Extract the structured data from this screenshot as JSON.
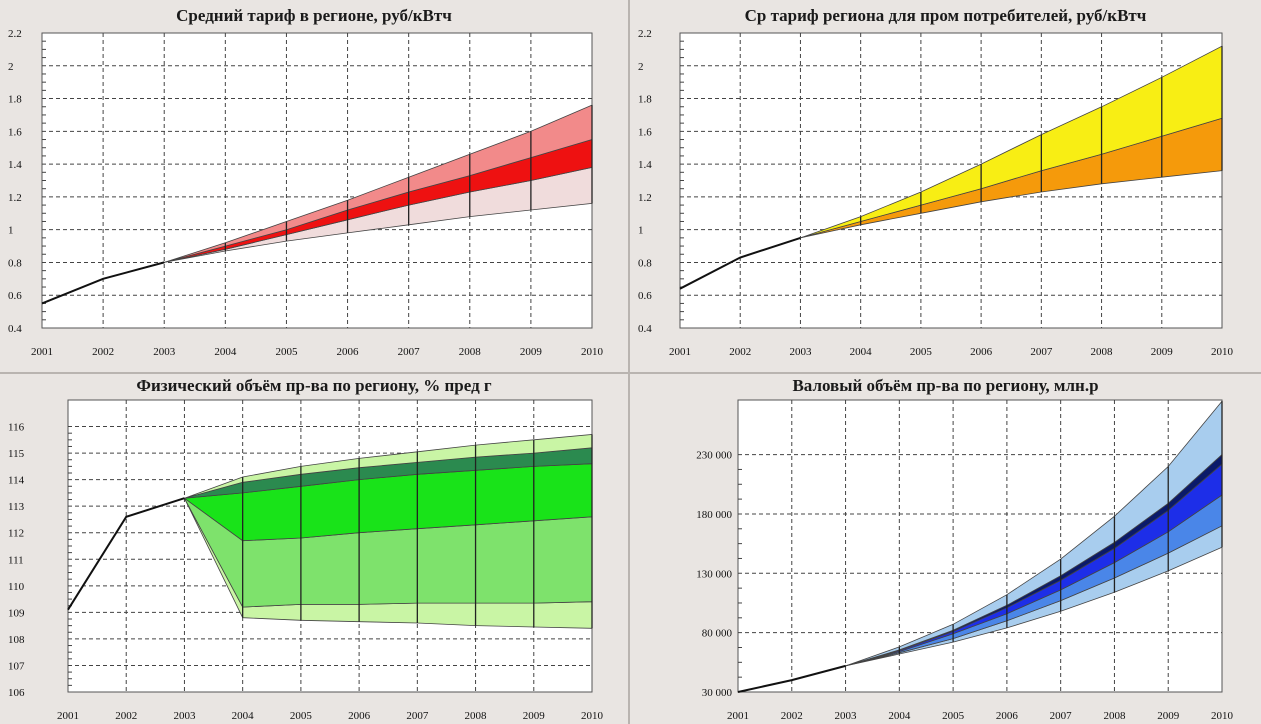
{
  "chart_data": [
    {
      "type": "area",
      "title": "Средний тариф в регионе,  руб/кВтч",
      "x": [
        2001,
        2002,
        2003,
        2004,
        2005,
        2006,
        2007,
        2008,
        2009,
        2010
      ],
      "x_ticks": [
        "2001",
        "2002",
        "2003",
        "2004",
        "2005",
        "2006",
        "2007",
        "2008",
        "2009",
        "2010"
      ],
      "y_ticks": [
        "0.4",
        "0.6",
        "0.8",
        "1",
        "1.2",
        "1.4",
        "1.6",
        "1.8",
        "2",
        "2.2"
      ],
      "ylim": [
        0.4,
        2.2
      ],
      "grid": true,
      "history": [
        0.55,
        0.7,
        0.8
      ],
      "forecast_x": [
        2003,
        2004,
        2005,
        2006,
        2007,
        2008,
        2009,
        2010
      ],
      "bands": [
        {
          "lower": [
            0.8,
            0.87,
            0.93,
            0.98,
            1.03,
            1.08,
            1.12,
            1.16
          ],
          "upper": [
            0.8,
            0.88,
            0.97,
            1.06,
            1.15,
            1.23,
            1.3,
            1.38
          ],
          "color": "#f0dcdc"
        },
        {
          "lower": [
            0.8,
            0.88,
            0.97,
            1.06,
            1.15,
            1.23,
            1.3,
            1.38
          ],
          "upper": [
            0.8,
            0.9,
            1.0,
            1.12,
            1.23,
            1.33,
            1.44,
            1.55
          ],
          "color": "#ee1111"
        },
        {
          "lower": [
            0.8,
            0.9,
            1.0,
            1.12,
            1.23,
            1.33,
            1.44,
            1.55
          ],
          "upper": [
            0.8,
            0.92,
            1.05,
            1.18,
            1.32,
            1.46,
            1.6,
            1.76
          ],
          "color": "#f28a8a"
        }
      ]
    },
    {
      "type": "area",
      "title": "Ср тариф региона для пром потребителей,  руб/кВтч",
      "x": [
        2001,
        2002,
        2003,
        2004,
        2005,
        2006,
        2007,
        2008,
        2009,
        2010
      ],
      "x_ticks": [
        "2001",
        "2002",
        "2003",
        "2004",
        "2005",
        "2006",
        "2007",
        "2008",
        "2009",
        "2010"
      ],
      "y_ticks": [
        "0.4",
        "0.6",
        "0.8",
        "1",
        "1.2",
        "1.4",
        "1.6",
        "1.8",
        "2",
        "2.2"
      ],
      "ylim": [
        0.4,
        2.2
      ],
      "grid": true,
      "history": [
        0.64,
        0.83,
        0.95
      ],
      "forecast_x": [
        2003,
        2004,
        2005,
        2006,
        2007,
        2008,
        2009,
        2010
      ],
      "bands": [
        {
          "lower": [
            0.95,
            1.03,
            1.1,
            1.17,
            1.23,
            1.28,
            1.32,
            1.36
          ],
          "upper": [
            0.95,
            1.05,
            1.15,
            1.25,
            1.36,
            1.46,
            1.57,
            1.68
          ],
          "color": "#f59a0b"
        },
        {
          "lower": [
            0.95,
            1.05,
            1.15,
            1.25,
            1.36,
            1.46,
            1.57,
            1.68
          ],
          "upper": [
            0.95,
            1.08,
            1.23,
            1.4,
            1.58,
            1.75,
            1.93,
            2.12
          ],
          "color": "#f8ee14"
        }
      ]
    },
    {
      "type": "area",
      "title": "Физический объём пр-ва по региону, % пред г",
      "x": [
        2001,
        2002,
        2003,
        2004,
        2005,
        2006,
        2007,
        2008,
        2009,
        2010
      ],
      "x_ticks": [
        "2001",
        "2002",
        "2003",
        "2004",
        "2005",
        "2006",
        "2007",
        "2008",
        "2009",
        "2010"
      ],
      "y_ticks": [
        "106",
        "107",
        "108",
        "109",
        "110",
        "111",
        "112",
        "113",
        "114",
        "115",
        "116"
      ],
      "ylim": [
        106,
        117
      ],
      "grid": true,
      "history": [
        109.1,
        112.6,
        113.3
      ],
      "forecast_x": [
        2003,
        2004,
        2005,
        2006,
        2007,
        2008,
        2009,
        2010
      ],
      "bands": [
        {
          "lower": [
            113.3,
            108.8,
            108.7,
            108.65,
            108.6,
            108.5,
            108.45,
            108.4
          ],
          "upper": [
            113.3,
            109.2,
            109.3,
            109.3,
            109.35,
            109.35,
            109.35,
            109.4
          ],
          "color": "#c9f5a5"
        },
        {
          "lower": [
            113.3,
            109.2,
            109.3,
            109.3,
            109.35,
            109.35,
            109.35,
            109.4
          ],
          "upper": [
            113.3,
            111.7,
            111.8,
            112.0,
            112.15,
            112.3,
            112.45,
            112.6
          ],
          "color": "#7ee26c"
        },
        {
          "lower": [
            113.3,
            111.7,
            111.8,
            112.0,
            112.15,
            112.3,
            112.45,
            112.6
          ],
          "upper": [
            113.3,
            113.5,
            113.75,
            114.0,
            114.2,
            114.35,
            114.5,
            114.6
          ],
          "color": "#19e319"
        },
        {
          "lower": [
            113.3,
            113.5,
            113.75,
            114.0,
            114.2,
            114.35,
            114.5,
            114.6
          ],
          "upper": [
            113.3,
            113.9,
            114.2,
            114.45,
            114.65,
            114.85,
            115.0,
            115.2
          ],
          "color": "#2b8a4f"
        },
        {
          "lower": [
            113.3,
            113.9,
            114.2,
            114.45,
            114.65,
            114.85,
            115.0,
            115.2
          ],
          "upper": [
            113.3,
            114.1,
            114.5,
            114.8,
            115.05,
            115.3,
            115.5,
            115.7
          ],
          "color": "#c9f5a5"
        }
      ]
    },
    {
      "type": "area",
      "title": "Валовый объём пр-ва по региону, млн.р",
      "x": [
        2001,
        2002,
        2003,
        2004,
        2005,
        2006,
        2007,
        2008,
        2009,
        2010
      ],
      "x_ticks": [
        "2001",
        "2002",
        "2003",
        "2004",
        "2005",
        "2006",
        "2007",
        "2008",
        "2009",
        "2010"
      ],
      "y_ticks": [
        "30 000",
        "80 000",
        "130 000",
        "180 000",
        "230 000"
      ],
      "y_tick_values": [
        30000,
        80000,
        130000,
        180000,
        230000
      ],
      "ylim": [
        30000,
        276000
      ],
      "grid": true,
      "history": [
        30000,
        40000,
        52000
      ],
      "forecast_x": [
        2003,
        2004,
        2005,
        2006,
        2007,
        2008,
        2009,
        2010
      ],
      "bands": [
        {
          "lower": [
            52000,
            62000,
            72000,
            84000,
            98000,
            114000,
            132000,
            152000
          ],
          "upper": [
            52000,
            63000,
            75000,
            90000,
            107000,
            126000,
            147000,
            170000
          ],
          "color": "#a8cdee"
        },
        {
          "lower": [
            52000,
            63000,
            75000,
            90000,
            107000,
            126000,
            147000,
            170000
          ],
          "upper": [
            52000,
            64000,
            79000,
            96000,
            116000,
            139000,
            165000,
            196000
          ],
          "color": "#4a86e8"
        },
        {
          "lower": [
            52000,
            64000,
            79000,
            96000,
            116000,
            139000,
            165000,
            196000
          ],
          "upper": [
            52000,
            65000,
            81000,
            101000,
            124000,
            151000,
            183000,
            222000
          ],
          "color": "#1d2ee8"
        },
        {
          "lower": [
            52000,
            65000,
            81000,
            101000,
            124000,
            151000,
            183000,
            222000
          ],
          "upper": [
            52000,
            65500,
            82000,
            103000,
            128000,
            156000,
            189000,
            230000
          ],
          "color": "#0a1a6a"
        },
        {
          "lower": [
            52000,
            65500,
            82000,
            103000,
            128000,
            156000,
            189000,
            230000
          ],
          "upper": [
            52000,
            68000,
            87000,
            112000,
            142000,
            178000,
            220000,
            275000
          ],
          "color": "#a8cdee"
        }
      ]
    }
  ]
}
